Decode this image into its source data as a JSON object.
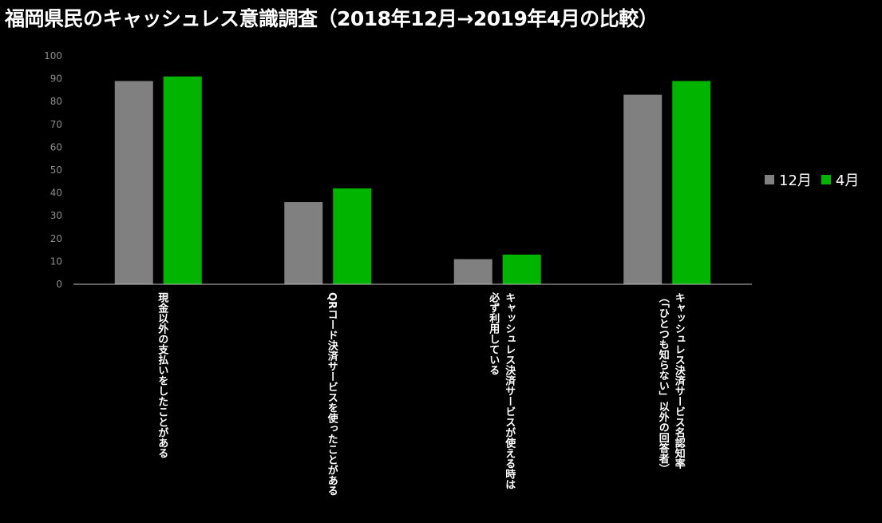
{
  "title": "福岡県民のキャッシュレス意識調査（2018年12月→2019年4月の比較）",
  "chart_data": {
    "type": "bar",
    "categories": [
      "現金以外の支払いをしたことがある",
      "QRコード決済サービスを使ったことがある",
      "キャッシュレス決済サービスが使える時は必ず利用している",
      "キャッシュレス決済サービス名認知率（「ひとつも知らない」以外の回答者）"
    ],
    "category_label_lines": [
      [
        "現金以外の支払いをしたことがある"
      ],
      [
        "QRコード決済サービスを使ったことがある"
      ],
      [
        "キャッシュレス決済サービスが使える時は",
        "必ず利用している"
      ],
      [
        "キャッシュレス決済サービス名認知率",
        "（「ひとつも知らない」以外の回答者）"
      ]
    ],
    "series": [
      {
        "name": "12月",
        "color": "#808080",
        "values": [
          89,
          36,
          11,
          83
        ]
      },
      {
        "name": "4月",
        "color": "#00b400",
        "values": [
          91,
          42,
          13,
          89
        ]
      }
    ],
    "ylim": [
      0,
      100
    ],
    "yticks": [
      "0",
      "10",
      "20",
      "30",
      "40",
      "50",
      "60",
      "70",
      "80",
      "90",
      "100"
    ],
    "grid": false,
    "legend_position": "right"
  }
}
